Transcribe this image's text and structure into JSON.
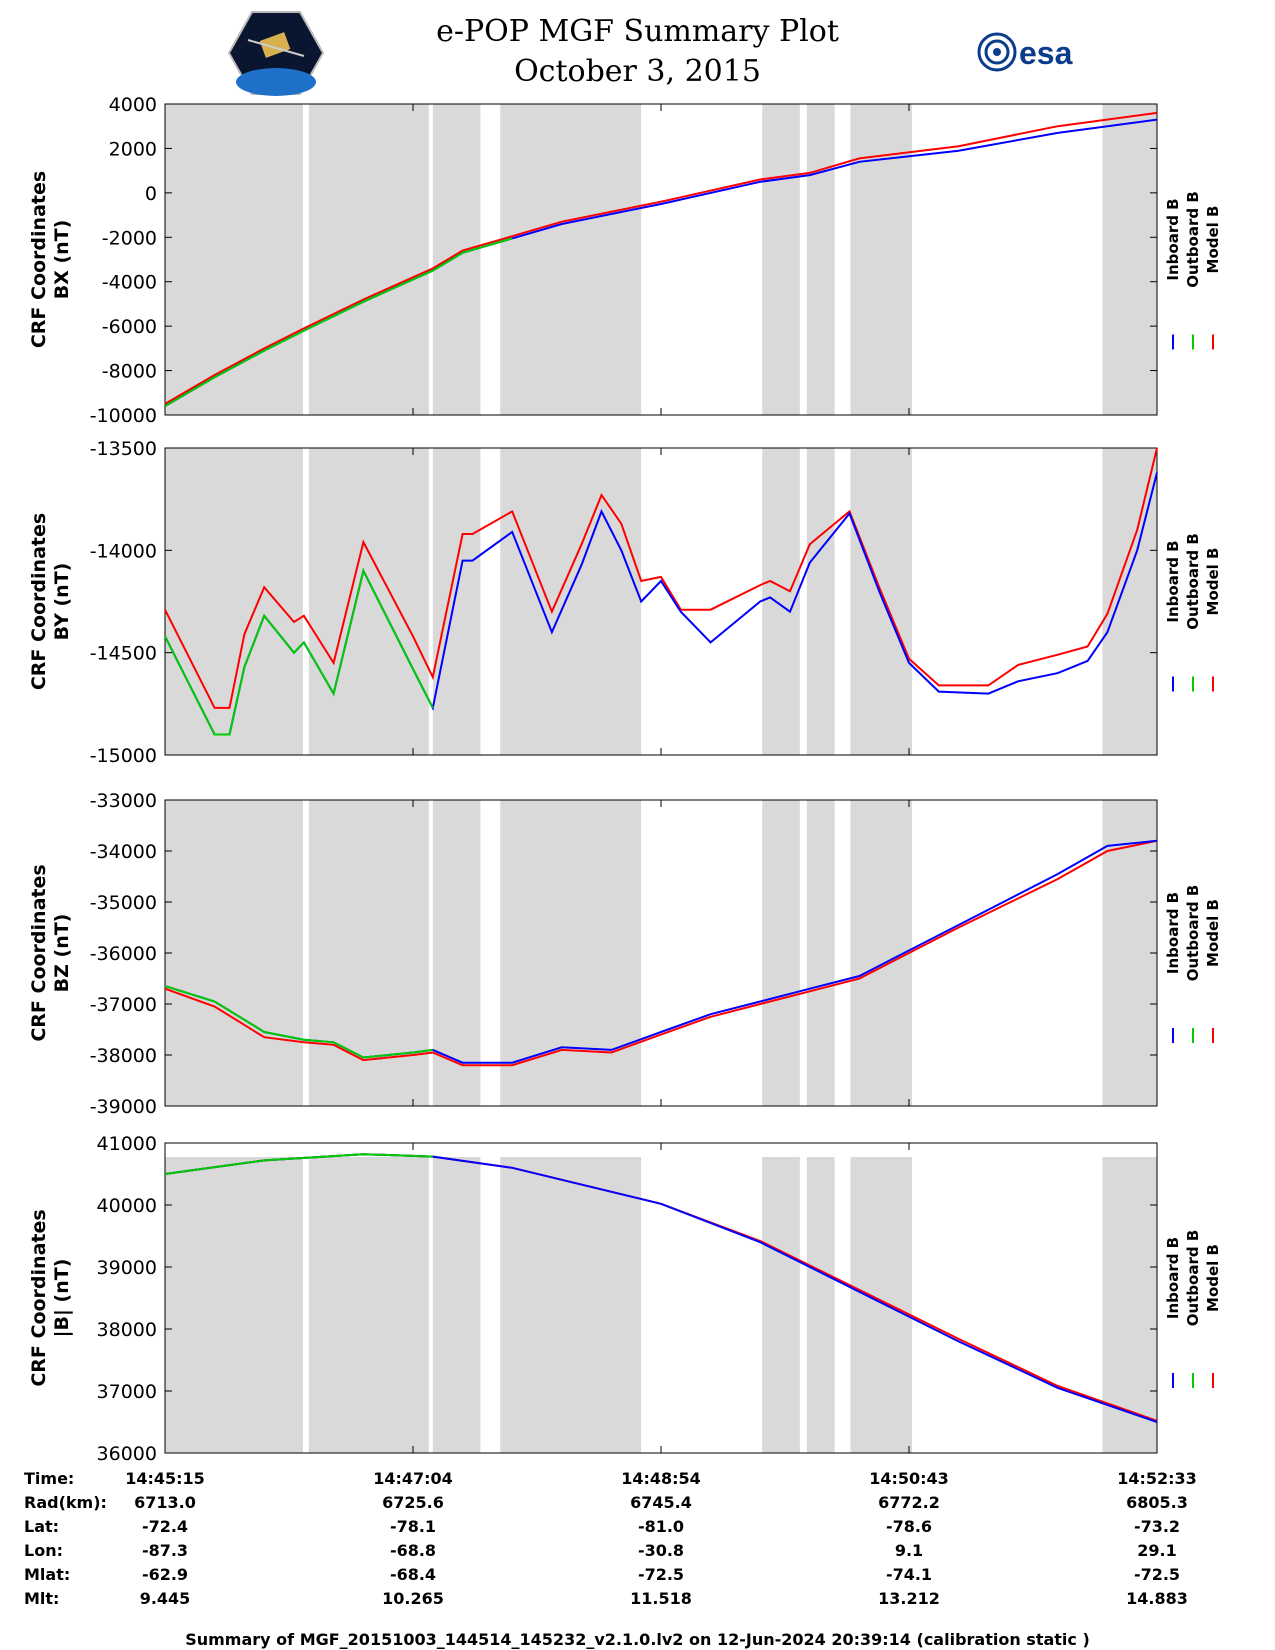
{
  "title": "e-POP MGF Summary Plot",
  "subtitle": "October 3, 2015",
  "logos": {
    "left": "cassiope-satellite-logo",
    "right": "esa"
  },
  "colors": {
    "inboard": "#0000ff",
    "outboard": "#00cc00",
    "model": "#ff0000",
    "shade": "#d9d9d9"
  },
  "legend": [
    "Inboard B",
    "Outboard B",
    "Model B"
  ],
  "time_fractions_note": "panel x axis is time fraction 0..1 across 14:45:15 - 14:52:33",
  "gray_intervals": [
    [
      0,
      0.139
    ],
    [
      0.145,
      0.266
    ],
    [
      0.27,
      0.318
    ],
    [
      0.338,
      0.48
    ],
    [
      0.602,
      0.64
    ],
    [
      0.647,
      0.675
    ],
    [
      0.691,
      0.753
    ],
    [
      0.945,
      1.0
    ]
  ],
  "chart_data": [
    {
      "type": "line",
      "ylabel_line1": "CRF Coordinates",
      "ylabel_line2": "BX (nT)",
      "ylim": [
        -10000,
        4000
      ],
      "yticks": [
        "4000",
        "2000",
        "0",
        "-2000",
        "-4000",
        "-6000",
        "-8000",
        "-10000"
      ],
      "ytick_values": [
        4000,
        2000,
        0,
        -2000,
        -4000,
        -6000,
        -8000,
        -10000
      ],
      "x": [
        0,
        0.05,
        0.1,
        0.14,
        0.2,
        0.27,
        0.3,
        0.35,
        0.4,
        0.5,
        0.6,
        0.65,
        0.7,
        0.8,
        0.9,
        1.0
      ],
      "series": [
        {
          "name": "Inboard B",
          "color": "#0000ff",
          "values": [
            -9600,
            -8300,
            -7100,
            -6200,
            -4900,
            -3500,
            -2700,
            -2050,
            -1400,
            -500,
            500,
            800,
            1400,
            1900,
            2700,
            3300
          ]
        },
        {
          "name": "Outboard B",
          "color": "#00cc00",
          "values": [
            -9600,
            -8300,
            -7100,
            -6200,
            -4900,
            -3500,
            -2700,
            -2050
          ],
          "x": [
            0,
            0.05,
            0.1,
            0.14,
            0.2,
            0.27,
            0.3,
            0.35
          ]
        },
        {
          "name": "Model B",
          "color": "#ff0000",
          "values": [
            -9500,
            -8200,
            -7000,
            -6100,
            -4800,
            -3400,
            -2600,
            -1950,
            -1300,
            -400,
            600,
            900,
            1550,
            2100,
            3000,
            3600
          ]
        }
      ]
    },
    {
      "type": "line",
      "ylabel_line1": "CRF Coordinates",
      "ylabel_line2": "BY (nT)",
      "ylim": [
        -15000,
        -13500
      ],
      "yticks": [
        "-13500",
        "-14000",
        "-14500",
        "-15000"
      ],
      "ytick_values": [
        -13500,
        -14000,
        -14500,
        -15000
      ],
      "x": [
        0,
        0.05,
        0.065,
        0.08,
        0.1,
        0.13,
        0.14,
        0.17,
        0.2,
        0.25,
        0.27,
        0.3,
        0.31,
        0.35,
        0.39,
        0.42,
        0.44,
        0.46,
        0.48,
        0.5,
        0.52,
        0.55,
        0.6,
        0.61,
        0.63,
        0.65,
        0.69,
        0.72,
        0.75,
        0.78,
        0.83,
        0.86,
        0.9,
        0.93,
        0.95,
        0.98,
        1.0
      ],
      "series": [
        {
          "name": "Inboard B",
          "color": "#0000ff",
          "values": [
            -14420,
            -14900,
            -14900,
            -14570,
            -14320,
            -14500,
            -14450,
            -14700,
            -14100,
            -14580,
            -14770,
            -14050,
            -14050,
            -13910,
            -14400,
            -14070,
            -13810,
            -14000,
            -14250,
            -14150,
            -14300,
            -14450,
            -14250,
            -14230,
            -14300,
            -14060,
            -13820,
            -14200,
            -14550,
            -14690,
            -14700,
            -14640,
            -14600,
            -14540,
            -14400,
            -14000,
            -13620
          ]
        },
        {
          "name": "Outboard B",
          "color": "#00cc00",
          "values": [
            -14420,
            -14900,
            -14900,
            -14570,
            -14320,
            -14500,
            -14450,
            -14700,
            -14100,
            -14580,
            -14770
          ],
          "x": [
            0,
            0.05,
            0.065,
            0.08,
            0.1,
            0.13,
            0.14,
            0.17,
            0.2,
            0.25,
            0.27
          ]
        },
        {
          "name": "Model B",
          "color": "#ff0000",
          "values": [
            -14290,
            -14770,
            -14770,
            -14410,
            -14180,
            -14350,
            -14320,
            -14550,
            -13960,
            -14420,
            -14620,
            -13920,
            -13920,
            -13810,
            -14300,
            -13970,
            -13730,
            -13870,
            -14150,
            -14130,
            -14290,
            -14290,
            -14170,
            -14150,
            -14200,
            -13970,
            -13810,
            -14180,
            -14530,
            -14660,
            -14660,
            -14560,
            -14510,
            -14470,
            -14310,
            -13900,
            -13500
          ]
        }
      ]
    },
    {
      "type": "line",
      "ylabel_line1": "CRF Coordinates",
      "ylabel_line2": "BZ (nT)",
      "ylim": [
        -39000,
        -33000
      ],
      "yticks": [
        "-33000",
        "-34000",
        "-35000",
        "-36000",
        "-37000",
        "-38000",
        "-39000"
      ],
      "ytick_values": [
        -33000,
        -34000,
        -35000,
        -36000,
        -37000,
        -38000,
        -39000
      ],
      "x": [
        0,
        0.05,
        0.1,
        0.14,
        0.17,
        0.2,
        0.25,
        0.27,
        0.3,
        0.35,
        0.4,
        0.45,
        0.5,
        0.55,
        0.6,
        0.65,
        0.7,
        0.8,
        0.9,
        0.95,
        1.0
      ],
      "series": [
        {
          "name": "Inboard B",
          "color": "#0000ff",
          "values": [
            -36650,
            -36950,
            -37550,
            -37700,
            -37750,
            -38050,
            -37950,
            -37900,
            -38150,
            -38150,
            -37850,
            -37900,
            -37550,
            -37200,
            -36950,
            -36700,
            -36450,
            -35450,
            -34450,
            -33900,
            -33800
          ]
        },
        {
          "name": "Outboard B",
          "color": "#00cc00",
          "values": [
            -36650,
            -36950,
            -37550,
            -37700,
            -37750,
            -38050,
            -37950,
            -37900
          ],
          "x": [
            0,
            0.05,
            0.1,
            0.14,
            0.17,
            0.2,
            0.25,
            0.27
          ]
        },
        {
          "name": "Model B",
          "color": "#ff0000",
          "values": [
            -36700,
            -37050,
            -37650,
            -37750,
            -37800,
            -38100,
            -38000,
            -37950,
            -38200,
            -38200,
            -37900,
            -37950,
            -37600,
            -37250,
            -37000,
            -36750,
            -36500,
            -35500,
            -34550,
            -34000,
            -33800
          ]
        }
      ]
    },
    {
      "type": "line",
      "ylabel_line1": "CRF Coordinates",
      "ylabel_line2": "|B| (nT)",
      "ylim": [
        36000,
        41000
      ],
      "yticks": [
        "41000",
        "40000",
        "39000",
        "38000",
        "37000",
        "36000"
      ],
      "ytick_values": [
        41000,
        40000,
        39000,
        38000,
        37000,
        36000
      ],
      "x": [
        0,
        0.1,
        0.2,
        0.27,
        0.35,
        0.5,
        0.6,
        0.7,
        0.8,
        0.9,
        1.0
      ],
      "series": [
        {
          "name": "Inboard B",
          "color": "#0000ff",
          "values": [
            40500,
            40720,
            40820,
            40780,
            40600,
            40020,
            39400,
            38600,
            37800,
            37050,
            36500
          ]
        },
        {
          "name": "Outboard B",
          "color": "#00cc00",
          "values": [
            40500,
            40720,
            40820,
            40780
          ],
          "x": [
            0,
            0.1,
            0.2,
            0.27
          ]
        },
        {
          "name": "Model B",
          "color": "#ff0000",
          "values": [
            40500,
            40720,
            40820,
            40780,
            40600,
            40020,
            39420,
            38630,
            37840,
            37080,
            36520
          ]
        }
      ]
    }
  ],
  "info": {
    "labels": [
      "Time:",
      "Rad(km):",
      "Lat:",
      "Lon:",
      "Mlat:",
      "Mlt:"
    ],
    "columns": [
      [
        "14:45:15",
        "6713.0",
        "-72.4",
        "-87.3",
        "-62.9",
        "9.445"
      ],
      [
        "14:47:04",
        "6725.6",
        "-78.1",
        "-68.8",
        "-68.4",
        "10.265"
      ],
      [
        "14:48:54",
        "6745.4",
        "-81.0",
        "-30.8",
        "-72.5",
        "11.518"
      ],
      [
        "14:50:43",
        "6772.2",
        "-78.6",
        "9.1",
        "-74.1",
        "13.212"
      ],
      [
        "14:52:33",
        "6805.3",
        "-73.2",
        "29.1",
        "-72.5",
        "14.883"
      ]
    ]
  },
  "footer": "Summary of MGF_20151003_144514_145232_v2.1.0.lv2 on 12-Jun-2024 20:39:14 (calibration static )"
}
